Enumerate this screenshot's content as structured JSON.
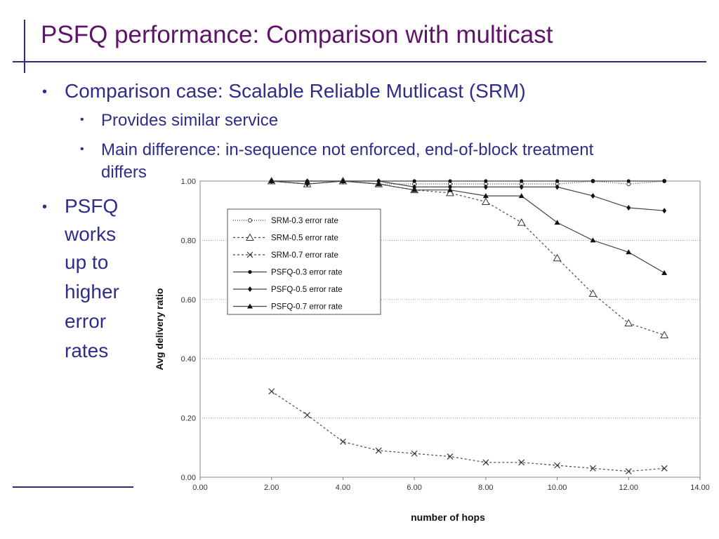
{
  "slide": {
    "title": "PSFQ performance: Comparison with multicast",
    "bullets": {
      "b1": "Comparison case: Scalable Reliable Mutlicast (SRM)",
      "b1_sub1": "Provides similar service",
      "b1_sub2_line1": "Main difference: in-sequence not enforced, end-of-block treatment",
      "b1_sub2_line2": "differs",
      "b2_lines": [
        "PSFQ",
        "works",
        "up to",
        "higher",
        "error",
        "rates"
      ]
    }
  },
  "colors": {
    "title": "#5e1468",
    "text": "#2d2d8c",
    "rule": "#2e2e78"
  },
  "chart_data": {
    "type": "line",
    "title": "",
    "xlabel": "number of hops",
    "ylabel": "Avg delivery ratio",
    "xlim": [
      0,
      14
    ],
    "ylim": [
      0,
      1.0
    ],
    "x_ticks": [
      "0.00",
      "2.00",
      "4.00",
      "6.00",
      "8.00",
      "10.00",
      "12.00",
      "14.00"
    ],
    "y_ticks": [
      "0.00",
      "0.20",
      "0.40",
      "0.60",
      "0.80",
      "1.00"
    ],
    "grid": "horizontal dotted",
    "legend_position": "upper-left inside plot",
    "x": [
      2,
      3,
      4,
      5,
      6,
      7,
      8,
      9,
      10,
      11,
      12,
      13
    ],
    "series": [
      {
        "name": "SRM-0.3 error rate",
        "marker": "circle",
        "dash": "dotted",
        "values": [
          1.0,
          0.99,
          1.0,
          0.99,
          0.99,
          0.99,
          0.99,
          0.99,
          0.99,
          1.0,
          0.99,
          1.0
        ]
      },
      {
        "name": "SRM-0.5 error rate",
        "marker": "triangle-open",
        "dash": "dashed",
        "values": [
          1.0,
          0.99,
          1.0,
          0.99,
          0.97,
          0.96,
          0.93,
          0.86,
          0.74,
          0.62,
          0.52,
          0.48
        ]
      },
      {
        "name": "SRM-0.7 error rate",
        "marker": "x",
        "dash": "dashed",
        "values": [
          0.29,
          0.21,
          0.12,
          0.09,
          0.08,
          0.07,
          0.05,
          0.05,
          0.04,
          0.03,
          0.02,
          0.03
        ]
      },
      {
        "name": "PSFQ-0.3 error rate",
        "marker": "dot",
        "dash": "solid",
        "values": [
          1.0,
          1.0,
          1.0,
          1.0,
          1.0,
          1.0,
          1.0,
          1.0,
          1.0,
          1.0,
          1.0,
          1.0
        ]
      },
      {
        "name": "PSFQ-0.5 error rate",
        "marker": "diamond",
        "dash": "solid",
        "values": [
          1.0,
          0.99,
          1.0,
          1.0,
          0.98,
          0.98,
          0.98,
          0.98,
          0.98,
          0.95,
          0.91,
          0.9
        ]
      },
      {
        "name": "PSFQ-0.7 error rate",
        "marker": "triangle-filled",
        "dash": "solid",
        "values": [
          1.0,
          1.0,
          1.0,
          0.99,
          0.97,
          0.97,
          0.95,
          0.95,
          0.86,
          0.8,
          0.76,
          0.69
        ]
      }
    ]
  }
}
